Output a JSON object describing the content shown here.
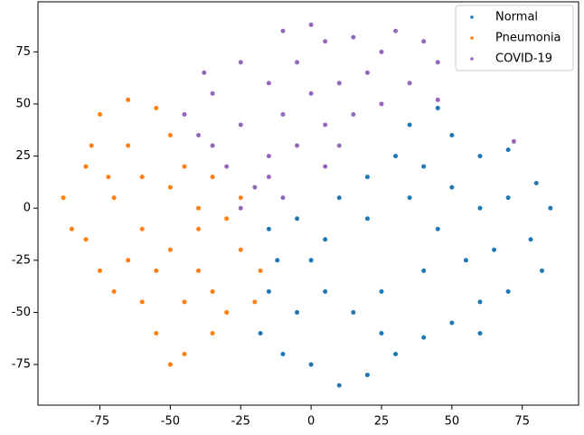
{
  "chart_data": {
    "type": "scatter",
    "xlim": [
      -97,
      95
    ],
    "ylim": [
      -94.5,
      99
    ],
    "xticks": [
      -75,
      -50,
      -25,
      0,
      25,
      50,
      75
    ],
    "yticks": [
      -75,
      -50,
      -25,
      0,
      25,
      50,
      75
    ],
    "grid": false,
    "legend": "upper right",
    "series": [
      {
        "name": "Normal",
        "color": "#1f77b4",
        "x": [
          45,
          50,
          60,
          70,
          80,
          85,
          78,
          82,
          70,
          60,
          50,
          40,
          30,
          20,
          10,
          0,
          -10,
          -18,
          -15,
          -12,
          -15,
          -5,
          5,
          10,
          20,
          30,
          40,
          35,
          50,
          60,
          65,
          55,
          40,
          25,
          15,
          5,
          0,
          20,
          45,
          70,
          25,
          60,
          -5,
          35
        ],
        "values": [
          48,
          35,
          25,
          28,
          12,
          0,
          -15,
          -30,
          -40,
          -45,
          -55,
          -62,
          -70,
          -80,
          -85,
          -75,
          -70,
          -60,
          -40,
          -25,
          -10,
          -5,
          -15,
          5,
          15,
          25,
          20,
          5,
          10,
          0,
          -20,
          -25,
          -30,
          -40,
          -50,
          -40,
          -25,
          -5,
          -10,
          5,
          -60,
          -60,
          -50,
          40
        ]
      },
      {
        "name": "Pneumonia",
        "color": "#ff7f0e",
        "x": [
          -75,
          -65,
          -55,
          -50,
          -45,
          -50,
          -35,
          -25,
          -30,
          -40,
          -25,
          -18,
          -20,
          -30,
          -35,
          -45,
          -50,
          -55,
          -60,
          -70,
          -75,
          -80,
          -88,
          -85,
          -80,
          -78,
          -65,
          -60,
          -70,
          -60,
          -50,
          -40,
          -55,
          -45,
          -65,
          -35,
          -72,
          -40
        ],
        "values": [
          45,
          52,
          48,
          35,
          20,
          10,
          15,
          5,
          -5,
          -10,
          -20,
          -30,
          -45,
          -50,
          -60,
          -70,
          -75,
          -60,
          -45,
          -40,
          -30,
          -15,
          5,
          -10,
          20,
          30,
          30,
          15,
          5,
          -10,
          -20,
          -30,
          -30,
          -45,
          -25,
          -40,
          15,
          0
        ]
      },
      {
        "name": "COVID-19",
        "color": "#9467bd",
        "x": [
          -45,
          -35,
          -38,
          -25,
          -15,
          -10,
          0,
          5,
          15,
          25,
          30,
          40,
          45,
          35,
          25,
          15,
          5,
          -5,
          -15,
          -20,
          -30,
          -35,
          -40,
          -25,
          -10,
          0,
          10,
          -5,
          10,
          -10,
          -25,
          20,
          45,
          72,
          -15,
          5
        ],
        "values": [
          45,
          55,
          65,
          70,
          60,
          85,
          88,
          80,
          82,
          75,
          85,
          80,
          70,
          60,
          50,
          45,
          40,
          30,
          25,
          10,
          20,
          30,
          35,
          40,
          45,
          55,
          60,
          70,
          30,
          5,
          0,
          65,
          52,
          32,
          15,
          20
        ]
      }
    ]
  }
}
